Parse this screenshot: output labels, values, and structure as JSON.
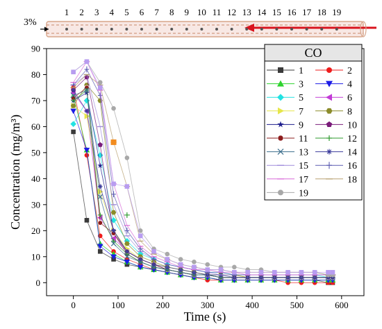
{
  "tunnel": {
    "slope_label": "3%",
    "station_labels": [
      "1",
      "2",
      "3",
      "4",
      "5",
      "6",
      "7",
      "8",
      "9",
      "10",
      "11",
      "12",
      "13",
      "14",
      "15",
      "16",
      "17",
      "18",
      "19"
    ]
  },
  "colors": {
    "tunnel_outline": "#d7a58a",
    "tunnel_fill": "#f8e8e4",
    "airflow_arrow": "#d9141e",
    "axis": "#000000"
  },
  "chart_data": {
    "type": "scatter",
    "title": "",
    "xlabel": "Time (s)",
    "ylabel": "Concentration (mg/m³)",
    "xlim": [
      -60,
      650
    ],
    "ylim": [
      -5,
      90
    ],
    "xticks": [
      0,
      100,
      200,
      300,
      400,
      500,
      600
    ],
    "yticks": [
      0,
      10,
      20,
      30,
      40,
      50,
      60,
      70,
      80,
      90
    ],
    "grid": false,
    "legend": {
      "title": "CO",
      "placement": "top-right",
      "columns": 2
    },
    "x": [
      0,
      30,
      60,
      90,
      120,
      150,
      180,
      210,
      240,
      270,
      300,
      330,
      360,
      390,
      420,
      450,
      480,
      510,
      540,
      570,
      580
    ],
    "series": [
      {
        "name": "1",
        "marker": "square",
        "color": "#3a3a3a",
        "values": [
          58,
          24,
          12,
          9,
          7,
          6,
          5,
          4,
          3,
          2,
          2,
          1,
          1,
          1,
          1,
          1,
          1,
          1,
          1,
          0,
          0
        ]
      },
      {
        "name": "2",
        "marker": "circle",
        "color": "#ee1c1c",
        "values": [
          75,
          49,
          18,
          12,
          9,
          7,
          5,
          4,
          3,
          2,
          1,
          1,
          1,
          1,
          1,
          1,
          0,
          0,
          0,
          0,
          0
        ]
      },
      {
        "name": "3",
        "marker": "triangle-up",
        "color": "#2ed32e",
        "values": [
          72,
          51,
          15,
          11,
          8,
          6,
          5,
          4,
          3,
          2,
          2,
          1,
          1,
          1,
          1,
          1,
          1,
          1,
          1,
          1,
          1
        ]
      },
      {
        "name": "4",
        "marker": "triangle-down",
        "color": "#1c1ce6",
        "values": [
          66,
          51,
          14,
          10,
          8,
          6,
          5,
          4,
          3,
          2,
          2,
          1,
          1,
          1,
          1,
          1,
          1,
          1,
          1,
          1,
          1
        ]
      },
      {
        "name": "5",
        "marker": "diamond",
        "color": "#22e2e2",
        "values": [
          61,
          70,
          49,
          24,
          16,
          11,
          9,
          7,
          6,
          5,
          4,
          4,
          3,
          3,
          3,
          3,
          3,
          3,
          3,
          2,
          2
        ]
      },
      {
        "name": "6",
        "marker": "triangle-left",
        "color": "#c23bd6",
        "values": [
          73,
          66,
          25,
          17,
          12,
          9,
          7,
          5,
          4,
          3,
          3,
          2,
          2,
          2,
          2,
          2,
          2,
          2,
          2,
          2,
          2
        ]
      },
      {
        "name": "7",
        "marker": "triangle-right",
        "color": "#e6e64a",
        "values": [
          68,
          64,
          35,
          20,
          13,
          9,
          7,
          6,
          5,
          4,
          3,
          3,
          3,
          2,
          2,
          2,
          2,
          2,
          2,
          2,
          2
        ]
      },
      {
        "name": "8",
        "marker": "hexagon",
        "color": "#8b8b2a",
        "values": [
          68,
          76,
          70,
          27,
          15,
          10,
          8,
          6,
          5,
          4,
          3,
          3,
          3,
          2,
          2,
          2,
          2,
          2,
          2,
          2,
          2
        ]
      },
      {
        "name": "9",
        "marker": "star",
        "color": "#1c1c8c",
        "values": [
          70,
          73,
          45,
          20,
          12,
          9,
          7,
          5,
          4,
          3,
          3,
          2,
          2,
          2,
          2,
          2,
          2,
          2,
          2,
          2,
          2
        ]
      },
      {
        "name": "10",
        "marker": "pentagon",
        "color": "#7a1c7a",
        "values": [
          74,
          79,
          53,
          19,
          11,
          8,
          6,
          5,
          4,
          3,
          3,
          2,
          2,
          2,
          2,
          2,
          2,
          2,
          2,
          2,
          2
        ]
      },
      {
        "name": "11",
        "marker": "circle-half",
        "color": "#8c1c1c",
        "values": [
          71,
          75,
          23,
          19,
          12,
          9,
          7,
          5,
          4,
          3,
          3,
          2,
          2,
          2,
          2,
          2,
          2,
          2,
          2,
          2,
          2
        ]
      },
      {
        "name": "12",
        "marker": "plus",
        "color": "#2e9a2e",
        "values": [
          70,
          74,
          26,
          16,
          11,
          8,
          6,
          5,
          4,
          3,
          3,
          2,
          2,
          2,
          2,
          2,
          2,
          2,
          2,
          2,
          2
        ]
      },
      {
        "name": "13",
        "marker": "cross",
        "color": "#3c6e8c",
        "values": [
          72,
          74,
          33,
          15,
          10,
          8,
          6,
          5,
          4,
          3,
          3,
          2,
          2,
          2,
          2,
          2,
          2,
          2,
          2,
          2,
          2
        ]
      },
      {
        "name": "14",
        "marker": "asterisk",
        "color": "#3c3c9c",
        "values": [
          74,
          66,
          37,
          20,
          12,
          9,
          7,
          6,
          5,
          4,
          3,
          3,
          2,
          2,
          2,
          2,
          2,
          2,
          2,
          2,
          2
        ]
      },
      {
        "name": "15",
        "marker": "dash",
        "color": "#a08cdc",
        "values": [
          76,
          80,
          60,
          30,
          18,
          12,
          9,
          7,
          6,
          5,
          4,
          3,
          3,
          3,
          3,
          3,
          3,
          3,
          3,
          3,
          3
        ]
      },
      {
        "name": "16",
        "marker": "vline",
        "color": "#5a5ab0",
        "values": [
          76,
          82,
          72,
          34,
          20,
          13,
          9,
          7,
          6,
          5,
          4,
          4,
          3,
          3,
          3,
          3,
          3,
          3,
          3,
          3,
          3
        ]
      },
      {
        "name": "17",
        "marker": "hline",
        "color": "#d86bd8",
        "values": [
          77,
          85,
          74,
          38,
          22,
          14,
          10,
          8,
          6,
          5,
          5,
          4,
          4,
          3,
          3,
          3,
          3,
          3,
          3,
          3,
          3
        ]
      },
      {
        "name": "18",
        "marker": "hline",
        "color": "#b8a070",
        "values": [
          75,
          80,
          76,
          54,
          37,
          16,
          11,
          9,
          7,
          6,
          5,
          5,
          4,
          4,
          4,
          4,
          4,
          4,
          4,
          3,
          3
        ]
      },
      {
        "name": "19",
        "marker": "circle",
        "color": "#a8a8a8",
        "values": [
          81,
          85,
          77,
          67,
          48,
          20,
          13,
          11,
          9,
          8,
          7,
          6,
          6,
          5,
          5,
          4,
          4,
          4,
          4,
          3,
          3
        ]
      }
    ],
    "extra_series_markers": {
      "15": {
        "color": "#b89cf0",
        "values": [
          81,
          85,
          75,
          38,
          37,
          18,
          12,
          9,
          7,
          6,
          5,
          5,
          4,
          4,
          4,
          4,
          4,
          4,
          4,
          4,
          4
        ]
      }
    },
    "annotations": [
      {
        "series": "8",
        "x": 90,
        "y": 54,
        "note": "orange square"
      },
      {
        "series": "12",
        "x": 120,
        "y": 26
      }
    ]
  }
}
